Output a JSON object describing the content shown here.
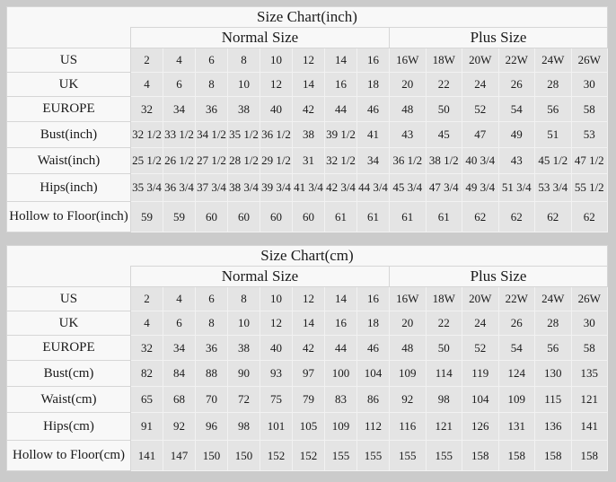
{
  "colors": {
    "page_background": "#cbcbcb",
    "data_cell_background": "#e4e4e4",
    "label_cell_background": "#f8f8f8",
    "grid_dark": "#d6d6d6",
    "grid_light": "#f2f2f2",
    "text": "#1a1a1a"
  },
  "tables": [
    {
      "title": "Size Chart(inch)",
      "normal_header": "Normal Size",
      "plus_header": "Plus Size",
      "rows": [
        {
          "label": "US",
          "values": [
            "2",
            "4",
            "6",
            "8",
            "10",
            "12",
            "14",
            "16",
            "16W",
            "18W",
            "20W",
            "22W",
            "24W",
            "26W"
          ]
        },
        {
          "label": "UK",
          "values": [
            "4",
            "6",
            "8",
            "10",
            "12",
            "14",
            "16",
            "18",
            "20",
            "22",
            "24",
            "26",
            "28",
            "30"
          ]
        },
        {
          "label": "EUROPE",
          "values": [
            "32",
            "34",
            "36",
            "38",
            "40",
            "42",
            "44",
            "46",
            "48",
            "50",
            "52",
            "54",
            "56",
            "58"
          ]
        },
        {
          "label": "Bust(inch)",
          "values": [
            "32 1/2",
            "33 1/2",
            "34 1/2",
            "35 1/2",
            "36 1/2",
            "38",
            "39 1/2",
            "41",
            "43",
            "45",
            "47",
            "49",
            "51",
            "53"
          ]
        },
        {
          "label": "Waist(inch)",
          "values": [
            "25 1/2",
            "26 1/2",
            "27 1/2",
            "28 1/2",
            "29 1/2",
            "31",
            "32 1/2",
            "34",
            "36 1/2",
            "38 1/2",
            "40 3/4",
            "43",
            "45 1/2",
            "47 1/2"
          ]
        },
        {
          "label": "Hips(inch)",
          "values": [
            "35 3/4",
            "36 3/4",
            "37 3/4",
            "38 3/4",
            "39 3/4",
            "41 3/4",
            "42 3/4",
            "44 3/4",
            "45 3/4",
            "47 3/4",
            "49 3/4",
            "51 3/4",
            "53 3/4",
            "55 1/2"
          ]
        },
        {
          "label": "Hollow to Floor(inch)",
          "values": [
            "59",
            "59",
            "60",
            "60",
            "60",
            "60",
            "61",
            "61",
            "61",
            "61",
            "62",
            "62",
            "62",
            "62"
          ]
        }
      ]
    },
    {
      "title": "Size Chart(cm)",
      "normal_header": "Normal Size",
      "plus_header": "Plus Size",
      "rows": [
        {
          "label": "US",
          "values": [
            "2",
            "4",
            "6",
            "8",
            "10",
            "12",
            "14",
            "16",
            "16W",
            "18W",
            "20W",
            "22W",
            "24W",
            "26W"
          ]
        },
        {
          "label": "UK",
          "values": [
            "4",
            "6",
            "8",
            "10",
            "12",
            "14",
            "16",
            "18",
            "20",
            "22",
            "24",
            "26",
            "28",
            "30"
          ]
        },
        {
          "label": "EUROPE",
          "values": [
            "32",
            "34",
            "36",
            "38",
            "40",
            "42",
            "44",
            "46",
            "48",
            "50",
            "52",
            "54",
            "56",
            "58"
          ]
        },
        {
          "label": "Bust(cm)",
          "values": [
            "82",
            "84",
            "88",
            "90",
            "93",
            "97",
            "100",
            "104",
            "109",
            "114",
            "119",
            "124",
            "130",
            "135"
          ]
        },
        {
          "label": "Waist(cm)",
          "values": [
            "65",
            "68",
            "70",
            "72",
            "75",
            "79",
            "83",
            "86",
            "92",
            "98",
            "104",
            "109",
            "115",
            "121"
          ]
        },
        {
          "label": "Hips(cm)",
          "values": [
            "91",
            "92",
            "96",
            "98",
            "101",
            "105",
            "109",
            "112",
            "116",
            "121",
            "126",
            "131",
            "136",
            "141"
          ]
        },
        {
          "label": "Hollow to Floor(cm)",
          "values": [
            "141",
            "147",
            "150",
            "150",
            "152",
            "152",
            "155",
            "155",
            "155",
            "155",
            "158",
            "158",
            "158",
            "158"
          ]
        }
      ]
    }
  ]
}
